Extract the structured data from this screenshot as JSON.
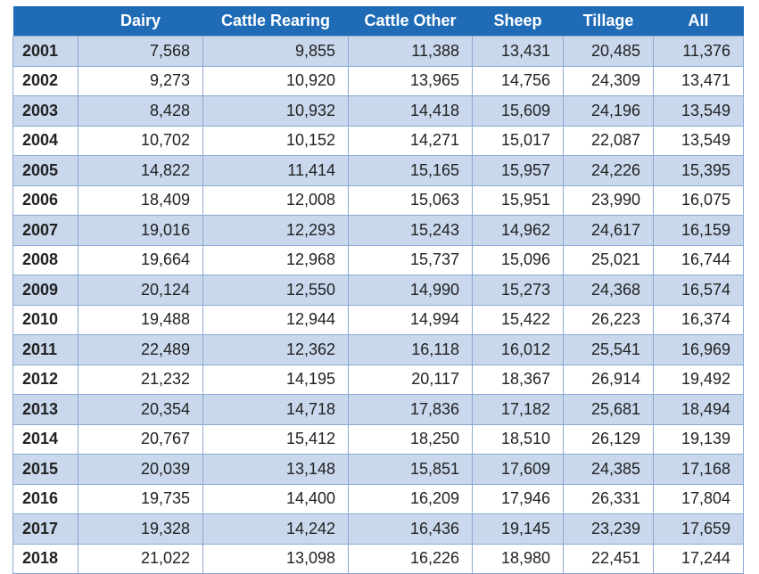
{
  "colors": {
    "header_bg": "#1f6bb5",
    "shaded_row": "#c9d8ec",
    "border": "#8aa9d3"
  },
  "table": {
    "columns": [
      "",
      "Dairy",
      "Cattle Rearing",
      "Cattle Other",
      "Sheep",
      "Tillage",
      "All"
    ],
    "rows": [
      [
        "2001",
        "7,568",
        "9,855",
        "11,388",
        "13,431",
        "20,485",
        "11,376"
      ],
      [
        "2002",
        "9,273",
        "10,920",
        "13,965",
        "14,756",
        "24,309",
        "13,471"
      ],
      [
        "2003",
        "8,428",
        "10,932",
        "14,418",
        "15,609",
        "24,196",
        "13,549"
      ],
      [
        "2004",
        "10,702",
        "10,152",
        "14,271",
        "15,017",
        "22,087",
        "13,549"
      ],
      [
        "2005",
        "14,822",
        "11,414",
        "15,165",
        "15,957",
        "24,226",
        "15,395"
      ],
      [
        "2006",
        "18,409",
        "12,008",
        "15,063",
        "15,951",
        "23,990",
        "16,075"
      ],
      [
        "2007",
        "19,016",
        "12,293",
        "15,243",
        "14,962",
        "24,617",
        "16,159"
      ],
      [
        "2008",
        "19,664",
        "12,968",
        "15,737",
        "15,096",
        "25,021",
        "16,744"
      ],
      [
        "2009",
        "20,124",
        "12,550",
        "14,990",
        "15,273",
        "24,368",
        "16,574"
      ],
      [
        "2010",
        "19,488",
        "12,944",
        "14,994",
        "15,422",
        "26,223",
        "16,374"
      ],
      [
        "2011",
        "22,489",
        "12,362",
        "16,118",
        "16,012",
        "25,541",
        "16,969"
      ],
      [
        "2012",
        "21,232",
        "14,195",
        "20,117",
        "18,367",
        "26,914",
        "19,492"
      ],
      [
        "2013",
        "20,354",
        "14,718",
        "17,836",
        "17,182",
        "25,681",
        "18,494"
      ],
      [
        "2014",
        "20,767",
        "15,412",
        "18,250",
        "18,510",
        "26,129",
        "19,139"
      ],
      [
        "2015",
        "20,039",
        "13,148",
        "15,851",
        "17,609",
        "24,385",
        "17,168"
      ],
      [
        "2016",
        "19,735",
        "14,400",
        "16,209",
        "17,946",
        "26,331",
        "17,804"
      ],
      [
        "2017",
        "19,328",
        "14,242",
        "16,436",
        "19,145",
        "23,239",
        "17,659"
      ],
      [
        "2018",
        "21,022",
        "13,098",
        "16,226",
        "18,980",
        "22,451",
        "17,244"
      ]
    ]
  }
}
